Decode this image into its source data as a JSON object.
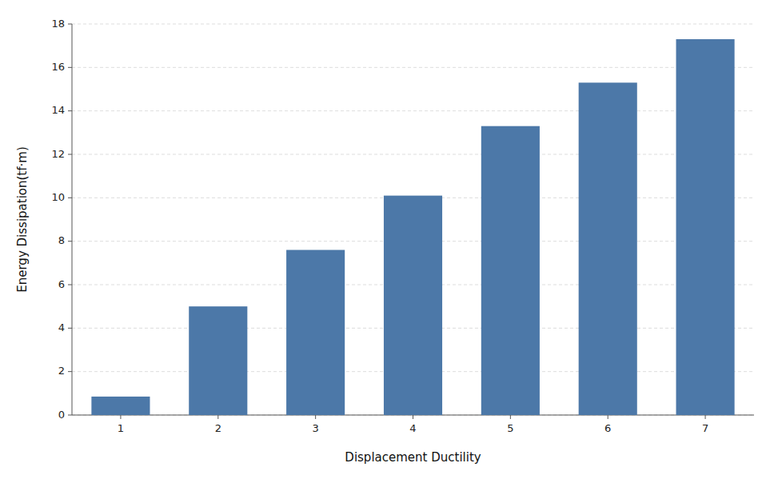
{
  "chart_data": {
    "type": "bar",
    "categories": [
      1,
      2,
      3,
      4,
      5,
      6,
      7
    ],
    "values": [
      0.85,
      5.0,
      7.6,
      10.1,
      13.3,
      15.3,
      17.3
    ],
    "xlabel": "Displacement Ductility",
    "ylabel": "Energy Dissipation(tf·m)",
    "ylim": [
      0,
      18
    ],
    "yticks": [
      0,
      2,
      4,
      6,
      8,
      10,
      12,
      14,
      16,
      18
    ],
    "grid": true
  }
}
